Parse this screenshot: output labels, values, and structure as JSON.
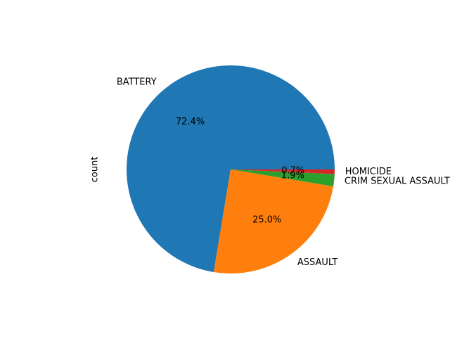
{
  "chart_data": {
    "type": "pie",
    "title": "",
    "ylabel": "count",
    "startangle_deg": 0,
    "direction": "counterclockwise",
    "slices": [
      {
        "label": "BATTERY",
        "percent": 72.4,
        "pct_label": "72.4%",
        "color": "#1f77b4"
      },
      {
        "label": "ASSAULT",
        "percent": 25.0,
        "pct_label": "25.0%",
        "color": "#ff7f0e"
      },
      {
        "label": "CRIM SEXUAL ASSAULT",
        "percent": 1.9,
        "pct_label": "1.9%",
        "color": "#2ca02c"
      },
      {
        "label": "HOMICIDE",
        "percent": 0.7,
        "pct_label": "0.7%",
        "color": "#d62728"
      }
    ]
  }
}
